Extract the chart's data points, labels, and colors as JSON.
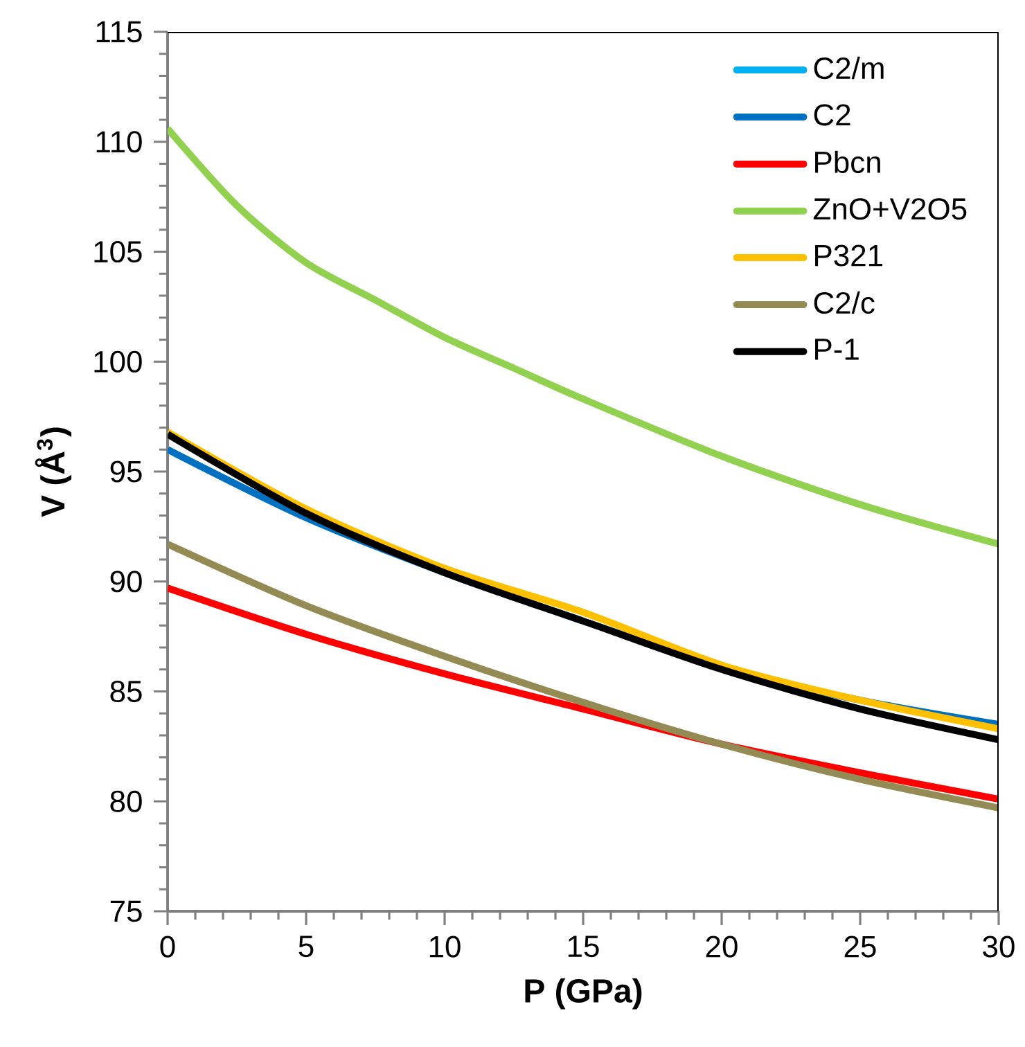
{
  "chart_data": {
    "type": "line",
    "xlabel": "P (GPa)",
    "ylabel": "V (Å$^{3}$)",
    "x": [
      0,
      5,
      10,
      15,
      20,
      25,
      30
    ],
    "series": [
      {
        "name": "C2/m",
        "color": "#00b0f0",
        "values": [
          null,
          null,
          null,
          null,
          null,
          null,
          null
        ]
      },
      {
        "name": "C2",
        "color": "#0070c0",
        "values": [
          96.0,
          92.9,
          90.4,
          88.2,
          86.1,
          84.6,
          83.5
        ]
      },
      {
        "name": "Pbcn",
        "color": "#ff0000",
        "values": [
          89.7,
          87.6,
          85.8,
          84.2,
          82.6,
          81.3,
          80.1
        ]
      },
      {
        "name": "ZnO+V2O5",
        "color": "#92d050",
        "x": [
          0,
          2.5,
          5,
          7.5,
          10,
          12.5,
          15,
          20,
          25,
          30
        ],
        "values": [
          110.6,
          107.1,
          104.5,
          102.8,
          101.1,
          99.7,
          98.3,
          95.7,
          93.5,
          91.7
        ]
      },
      {
        "name": "P321",
        "color": "#ffc000",
        "values": [
          96.8,
          93.3,
          90.6,
          88.6,
          86.2,
          84.6,
          83.3
        ]
      },
      {
        "name": "C2/c",
        "color": "#948a54",
        "values": [
          91.7,
          88.9,
          86.6,
          84.5,
          82.6,
          81.0,
          79.7
        ]
      },
      {
        "name": "P-1",
        "color": "#000000",
        "values": [
          96.7,
          93.1,
          90.4,
          88.2,
          86.0,
          84.2,
          82.8
        ]
      }
    ],
    "xlim": [
      0,
      30
    ],
    "ylim": [
      75,
      115
    ],
    "xticks": [
      0,
      5,
      10,
      15,
      20,
      25,
      30
    ],
    "yticks": [
      75,
      80,
      85,
      90,
      95,
      100,
      105,
      110,
      115
    ],
    "grid": false,
    "legend": "top right",
    "marker": "none",
    "line_style": "solid"
  }
}
